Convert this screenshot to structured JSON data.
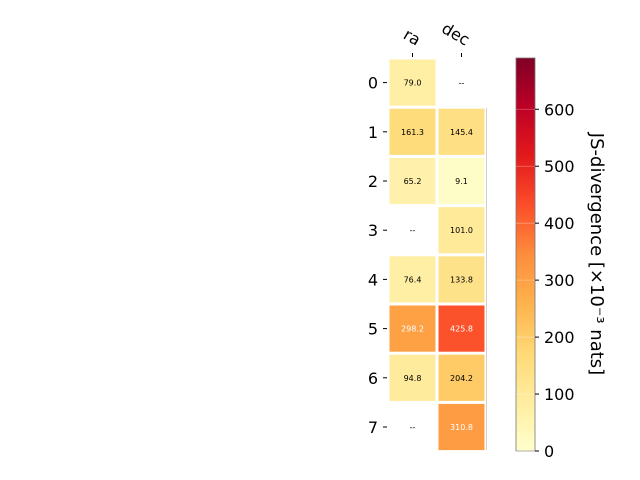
{
  "chart_data": {
    "type": "heatmap",
    "x_categories": [
      "ra",
      "dec"
    ],
    "y_categories": [
      "0",
      "1",
      "2",
      "3",
      "4",
      "5",
      "6",
      "7"
    ],
    "values": [
      [
        79.0,
        null
      ],
      [
        161.3,
        145.4
      ],
      [
        65.2,
        9.1
      ],
      [
        null,
        101.0
      ],
      [
        76.4,
        133.8
      ],
      [
        298.2,
        425.8
      ],
      [
        94.8,
        204.2
      ],
      [
        null,
        310.8
      ]
    ],
    "missing_label": "--",
    "colorbar": {
      "label": "JS-divergence [×10⁻³ nats]",
      "range": [
        0,
        690
      ],
      "ticks": [
        0,
        100,
        200,
        300,
        400,
        500,
        600
      ],
      "colormap": "YlOrRd",
      "stops": [
        "#ffffcc",
        "#ffeda0",
        "#fed976",
        "#feb24c",
        "#fd8d3c",
        "#fc4e2a",
        "#e31a1c",
        "#bd0026",
        "#800026"
      ]
    },
    "grid": false,
    "legend": "right"
  }
}
